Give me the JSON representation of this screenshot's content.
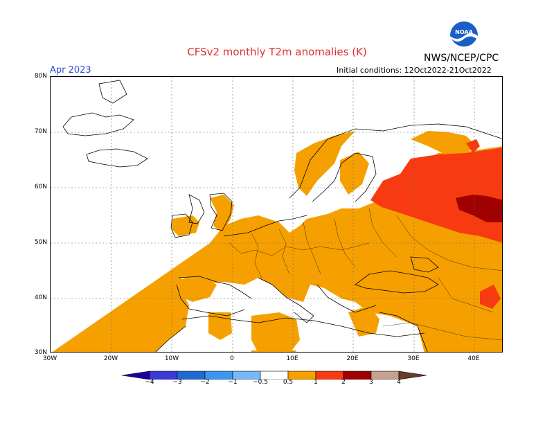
{
  "title": "CFSv2 monthly T2m anomalies (K)",
  "agency": "NWS/NCEP/CPC",
  "logo_text": "NOAA",
  "month": "Apr 2023",
  "initial_conditions": "Initial conditions: 12Oct2022-21Oct2022",
  "map": {
    "lat_labels": [
      "80N",
      "70N",
      "60N",
      "50N",
      "40N",
      "30N"
    ],
    "lon_labels": [
      "30W",
      "20W",
      "10W",
      "0",
      "10E",
      "20E",
      "30E",
      "40E"
    ],
    "region": "Europe"
  },
  "legend": {
    "labels": [
      "−4",
      "−3",
      "−2",
      "−1",
      "−0.5",
      "0.5",
      "1",
      "2",
      "3",
      "4"
    ],
    "colors": [
      "#2000a0",
      "#3a3ad6",
      "#1e6ad0",
      "#3c96f0",
      "#78b8f8",
      "#ffffff",
      "#f5a000",
      "#f83a10",
      "#a00000",
      "#c8a090",
      "#6a3a2a"
    ]
  }
}
